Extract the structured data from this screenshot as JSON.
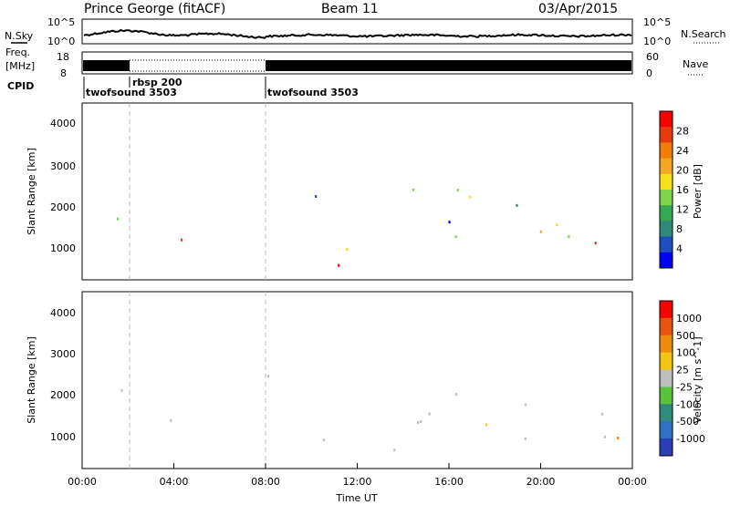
{
  "header": {
    "title": "Prince George (fitACF)",
    "beam": "Beam 11",
    "date": "03/Apr/2015"
  },
  "noise_panel": {
    "left_label": "N.Sky",
    "right_label": "N.Search",
    "y_ticks": [
      "10^5",
      "10^0"
    ]
  },
  "freq_panel": {
    "left_label_1": "Freq.",
    "left_label_2": "[MHz]",
    "left_ticks": [
      "18",
      "8"
    ],
    "right_label": "Nave",
    "right_ticks": [
      "60",
      "0"
    ]
  },
  "cpid": {
    "label": "CPID",
    "segments": [
      {
        "name": "twofsound 3503",
        "start_hour": 0,
        "end_hour": 2
      },
      {
        "name": "rbsp 200",
        "start_hour": 2,
        "end_hour": 8
      },
      {
        "name": "twofsound 3503",
        "start_hour": 8,
        "end_hour": 24
      }
    ]
  },
  "chart_data": [
    {
      "type": "heatmap",
      "quantity": "Power",
      "ylabel": "Slant Range [km]",
      "y_ticks": [
        "4000",
        "3000",
        "2000",
        "1000"
      ],
      "ylim": [
        180,
        4500
      ],
      "xlim": [
        0,
        24
      ],
      "colorbar": {
        "label": "Power [dB]",
        "ticks": [
          "28",
          "24",
          "20",
          "16",
          "12",
          "8",
          "4"
        ],
        "range": [
          0,
          30
        ],
        "colors": [
          "#0000ff",
          "#1f4fbf",
          "#2e8a7a",
          "#34a853",
          "#7fd64a",
          "#f5e11c",
          "#f5a623",
          "#f07d0a",
          "#e83b0e",
          "#ff0000"
        ]
      }
    },
    {
      "type": "heatmap",
      "quantity": "Velocity",
      "ylabel": "Slant Range [km]",
      "y_ticks": [
        "4000",
        "3000",
        "2000",
        "1000"
      ],
      "ylim": [
        180,
        4500
      ],
      "xlim": [
        0,
        24
      ],
      "colorbar": {
        "label": "Velocity [m s^-1]",
        "ticks": [
          "1000",
          "500",
          "100",
          "25",
          "-25",
          "-100",
          "-500",
          "-1000"
        ],
        "colors": [
          "#2a3fb5",
          "#2f6fc4",
          "#2e8c7a",
          "#57c43a",
          "#bfbfbf",
          "#f5c516",
          "#f08c0a",
          "#e8550e",
          "#ff0000"
        ]
      },
      "xlabel": "Time UT",
      "x_ticks": [
        "00:00",
        "04:00",
        "08:00",
        "12:00",
        "16:00",
        "20:00",
        "00:00"
      ]
    }
  ]
}
